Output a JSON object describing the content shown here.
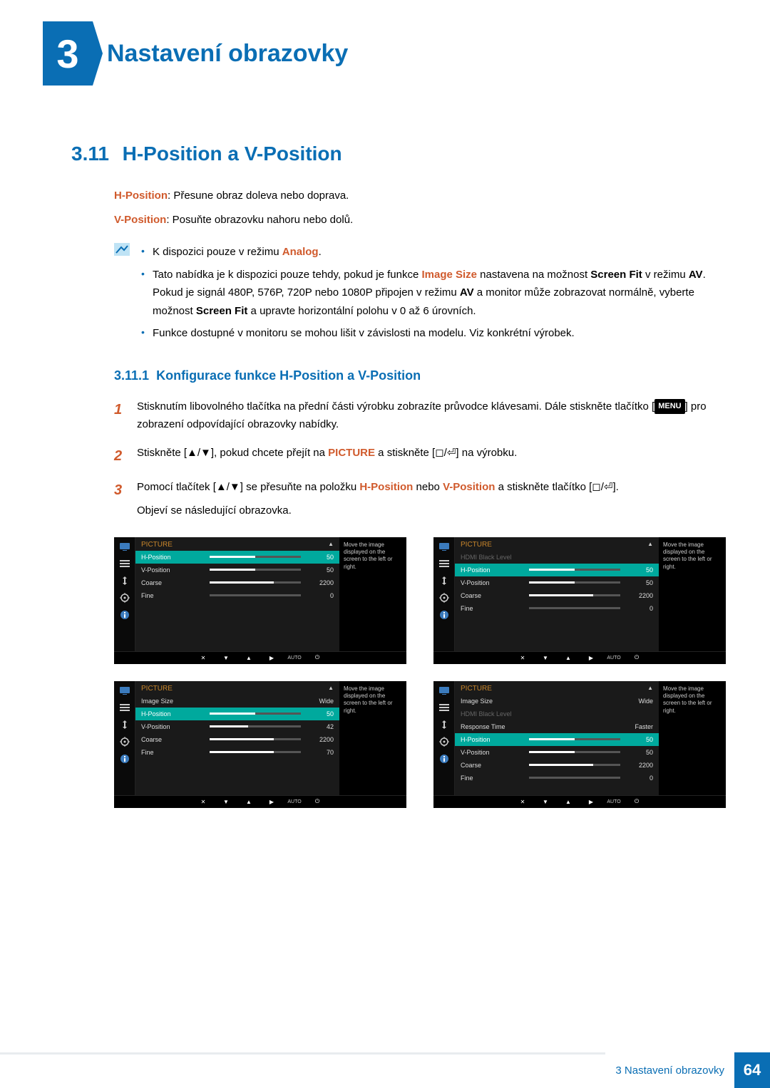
{
  "chapter": {
    "number": "3",
    "title": "Nastavení obrazovky"
  },
  "section": {
    "number": "3.11",
    "title": "H-Position a V-Position"
  },
  "intro": {
    "hpos_label": "H-Position",
    "hpos_text": ": Přesune obraz doleva nebo doprava.",
    "vpos_label": "V-Position",
    "vpos_text": ": Posuňte obrazovku nahoru nebo dolů."
  },
  "notes": {
    "n1_a": "K dispozici pouze v režimu ",
    "n1_b": "Analog",
    "n1_c": ".",
    "n2_a": "Tato nabídka je k dispozici pouze tehdy, pokud je funkce ",
    "n2_b": "Image Size",
    "n2_c": " nastavena na možnost ",
    "n2_d": "Screen Fit",
    "n2_e": " v režimu ",
    "n2_f": "AV",
    "n2_g": ". Pokud je signál 480P, 576P, 720P nebo 1080P připojen v režimu ",
    "n2_h": "AV",
    "n2_i": " a monitor může zobrazovat normálně, vyberte možnost ",
    "n2_j": "Screen Fit",
    "n2_k": " a upravte horizontální polohu v 0 až 6 úrovních.",
    "n3": "Funkce dostupné v monitoru se mohou lišit v závislosti na modelu. Viz konkrétní výrobek."
  },
  "subsection": {
    "number": "3.11.1",
    "title": "Konfigurace funkce H-Position a V-Position"
  },
  "steps": {
    "s1_a": "Stisknutím libovolného tlačítka na přední části výrobku zobrazíte průvodce klávesami. Dále stiskněte tlačítko [",
    "s1_menu": "MENU",
    "s1_b": "] pro zobrazení odpovídající obrazovky nabídky.",
    "s2_a": "Stiskněte [▲/▼], pokud chcete přejít na ",
    "s2_b": "PICTURE",
    "s2_c": " a stiskněte [◻/⏎] na výrobku.",
    "s3_a": "Pomocí tlačítek [▲/▼] se přesuňte na položku ",
    "s3_b": "H-Position",
    "s3_c": " nebo ",
    "s3_d": "V-Position",
    "s3_e": " a stiskněte tlačítko [◻/⏎].",
    "s3_f": "Objeví se následující obrazovka."
  },
  "osd_common": {
    "picture": "PICTURE",
    "desc": "Move the image displayed on the screen to the left or right.",
    "auto": "AUTO",
    "colors": {
      "selected_bg": "#00a99d",
      "heading": "#c9862b",
      "dim": "#666666"
    }
  },
  "osd": [
    {
      "rows": [
        {
          "label": "H-Position",
          "val": "50",
          "pct": 50,
          "sel": true
        },
        {
          "label": "V-Position",
          "val": "50",
          "pct": 50
        },
        {
          "label": "Coarse",
          "val": "2200",
          "pct": 70
        },
        {
          "label": "Fine",
          "val": "0",
          "pct": 0
        }
      ]
    },
    {
      "rows": [
        {
          "label": "HDMI Black Level",
          "val": "",
          "dim": true
        },
        {
          "label": "H-Position",
          "val": "50",
          "pct": 50,
          "sel": true
        },
        {
          "label": "V-Position",
          "val": "50",
          "pct": 50
        },
        {
          "label": "Coarse",
          "val": "2200",
          "pct": 70
        },
        {
          "label": "Fine",
          "val": "0",
          "pct": 0
        }
      ]
    },
    {
      "rows": [
        {
          "label": "Image Size",
          "val": "Wide",
          "text": true
        },
        {
          "label": "H-Position",
          "val": "50",
          "pct": 50,
          "sel": true
        },
        {
          "label": "V-Position",
          "val": "42",
          "pct": 42
        },
        {
          "label": "Coarse",
          "val": "2200",
          "pct": 70
        },
        {
          "label": "Fine",
          "val": "70",
          "pct": 70
        }
      ]
    },
    {
      "rows": [
        {
          "label": "Image Size",
          "val": "Wide",
          "text": true
        },
        {
          "label": "HDMI Black Level",
          "val": "",
          "dim": true
        },
        {
          "label": "Response Time",
          "val": "Faster",
          "text": true
        },
        {
          "label": "H-Position",
          "val": "50",
          "pct": 50,
          "sel": true
        },
        {
          "label": "V-Position",
          "val": "50",
          "pct": 50
        },
        {
          "label": "Coarse",
          "val": "2200",
          "pct": 70
        },
        {
          "label": "Fine",
          "val": "0",
          "pct": 0
        }
      ]
    }
  ],
  "footer": {
    "text": "3 Nastavení obrazovky",
    "page": "64"
  }
}
